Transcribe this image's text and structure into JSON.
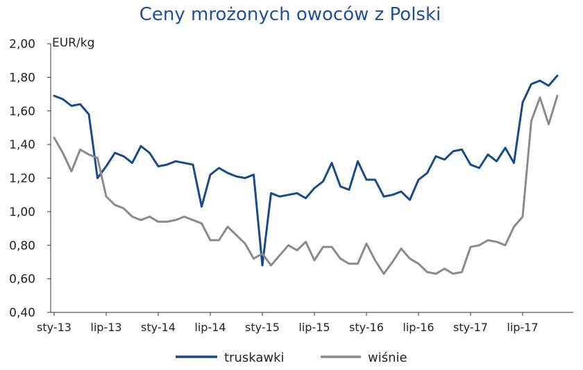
{
  "chart_data": {
    "type": "line",
    "title": "Ceny mrożonych owoców z Polski",
    "unit_label": "EUR/kg",
    "xlabel": "",
    "ylabel": "",
    "ylim": [
      0.4,
      2.0
    ],
    "y_ticks": [
      "0,40",
      "0,60",
      "0,80",
      "1,00",
      "1,20",
      "1,40",
      "1,60",
      "1,80",
      "2,00"
    ],
    "x_ticks": [
      "sty-13",
      "lip-13",
      "sty-14",
      "lip-14",
      "sty-15",
      "lip-15",
      "sty-16",
      "lip-16",
      "sty-17",
      "lip-17"
    ],
    "grid": false,
    "legend_position": "bottom",
    "colors": {
      "title": "#1f4e9b",
      "axis": "#222222"
    },
    "series": [
      {
        "name": "truskawki",
        "color": "#164a8c",
        "values": [
          1.69,
          1.67,
          1.63,
          1.64,
          1.58,
          1.2,
          1.27,
          1.35,
          1.33,
          1.29,
          1.39,
          1.35,
          1.27,
          1.28,
          1.3,
          1.29,
          1.28,
          1.03,
          1.22,
          1.26,
          1.23,
          1.21,
          1.2,
          1.22,
          0.68,
          1.11,
          1.09,
          1.1,
          1.11,
          1.08,
          1.14,
          1.18,
          1.29,
          1.15,
          1.13,
          1.3,
          1.19,
          1.19,
          1.09,
          1.1,
          1.12,
          1.07,
          1.19,
          1.23,
          1.33,
          1.31,
          1.36,
          1.37,
          1.28,
          1.26,
          1.34,
          1.3,
          1.38,
          1.29,
          1.65,
          1.76,
          1.78,
          1.75,
          1.81
        ]
      },
      {
        "name": "wiśnie",
        "color": "#8a8a8a",
        "values": [
          1.44,
          1.35,
          1.24,
          1.37,
          1.34,
          1.32,
          1.09,
          1.04,
          1.02,
          0.97,
          0.95,
          0.97,
          0.94,
          0.94,
          0.95,
          0.97,
          0.95,
          0.93,
          0.83,
          0.83,
          0.91,
          0.86,
          0.81,
          0.72,
          0.75,
          0.68,
          0.74,
          0.8,
          0.77,
          0.82,
          0.71,
          0.79,
          0.79,
          0.72,
          0.69,
          0.69,
          0.81,
          0.71,
          0.63,
          0.7,
          0.78,
          0.72,
          0.69,
          0.64,
          0.63,
          0.66,
          0.63,
          0.64,
          0.79,
          0.8,
          0.83,
          0.82,
          0.8,
          0.91,
          0.97,
          1.54,
          1.68,
          1.52,
          1.69
        ]
      }
    ]
  }
}
